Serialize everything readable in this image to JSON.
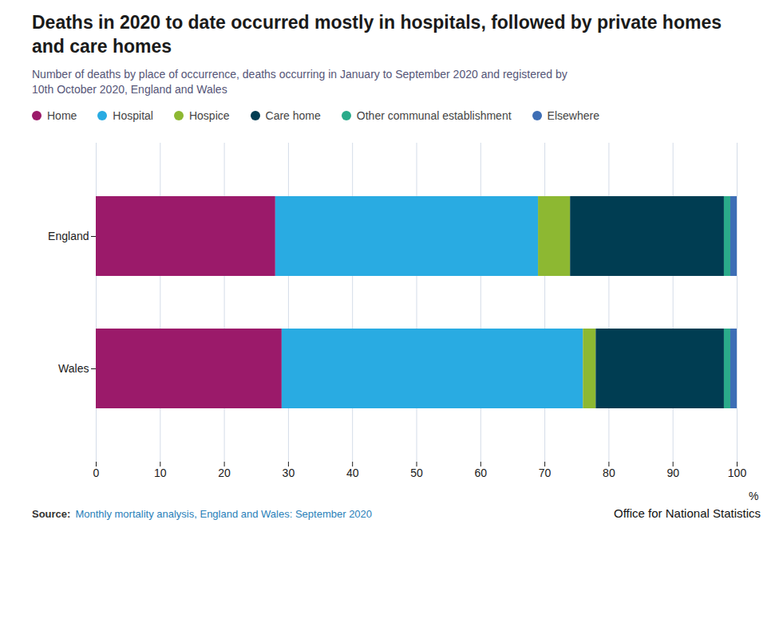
{
  "chart_data": {
    "type": "bar",
    "orientation": "horizontal",
    "stacked": true,
    "title": "Deaths in 2020 to date occurred mostly in hospitals, followed by private homes\nand care homes",
    "subtitle": "Number of deaths by place of occurrence, deaths occurring in January to September 2020 and registered by\n10th October 2020, England and Wales",
    "xlabel": "%",
    "annotations": [
      "Source:",
      "Monthly mortality analysis, England and Wales: September 2020",
      "Office for National Statistics"
    ],
    "categories": [
      "England",
      "Wales"
    ],
    "series": [
      {
        "name": "Home",
        "color": "#9b1a6a",
        "values": [
          28.0,
          29.0
        ]
      },
      {
        "name": "Hospital",
        "color": "#29abe2",
        "values": [
          41.0,
          47.0
        ]
      },
      {
        "name": "Hospice",
        "color": "#8db832",
        "values": [
          5.0,
          2.0
        ]
      },
      {
        "name": "Care home",
        "color": "#003d52",
        "values": [
          24.0,
          20.0
        ]
      },
      {
        "name": "Other communal establishment",
        "color": "#2aab8a",
        "values": [
          1.0,
          1.0
        ]
      },
      {
        "name": "Elsewhere",
        "color": "#3d6eb5",
        "values": [
          1.0,
          1.0
        ]
      }
    ],
    "xlim": [
      0,
      100
    ],
    "xticks": [
      0,
      10,
      20,
      30,
      40,
      50,
      60,
      70,
      80,
      90,
      100
    ],
    "grid": true,
    "legend": "top"
  }
}
